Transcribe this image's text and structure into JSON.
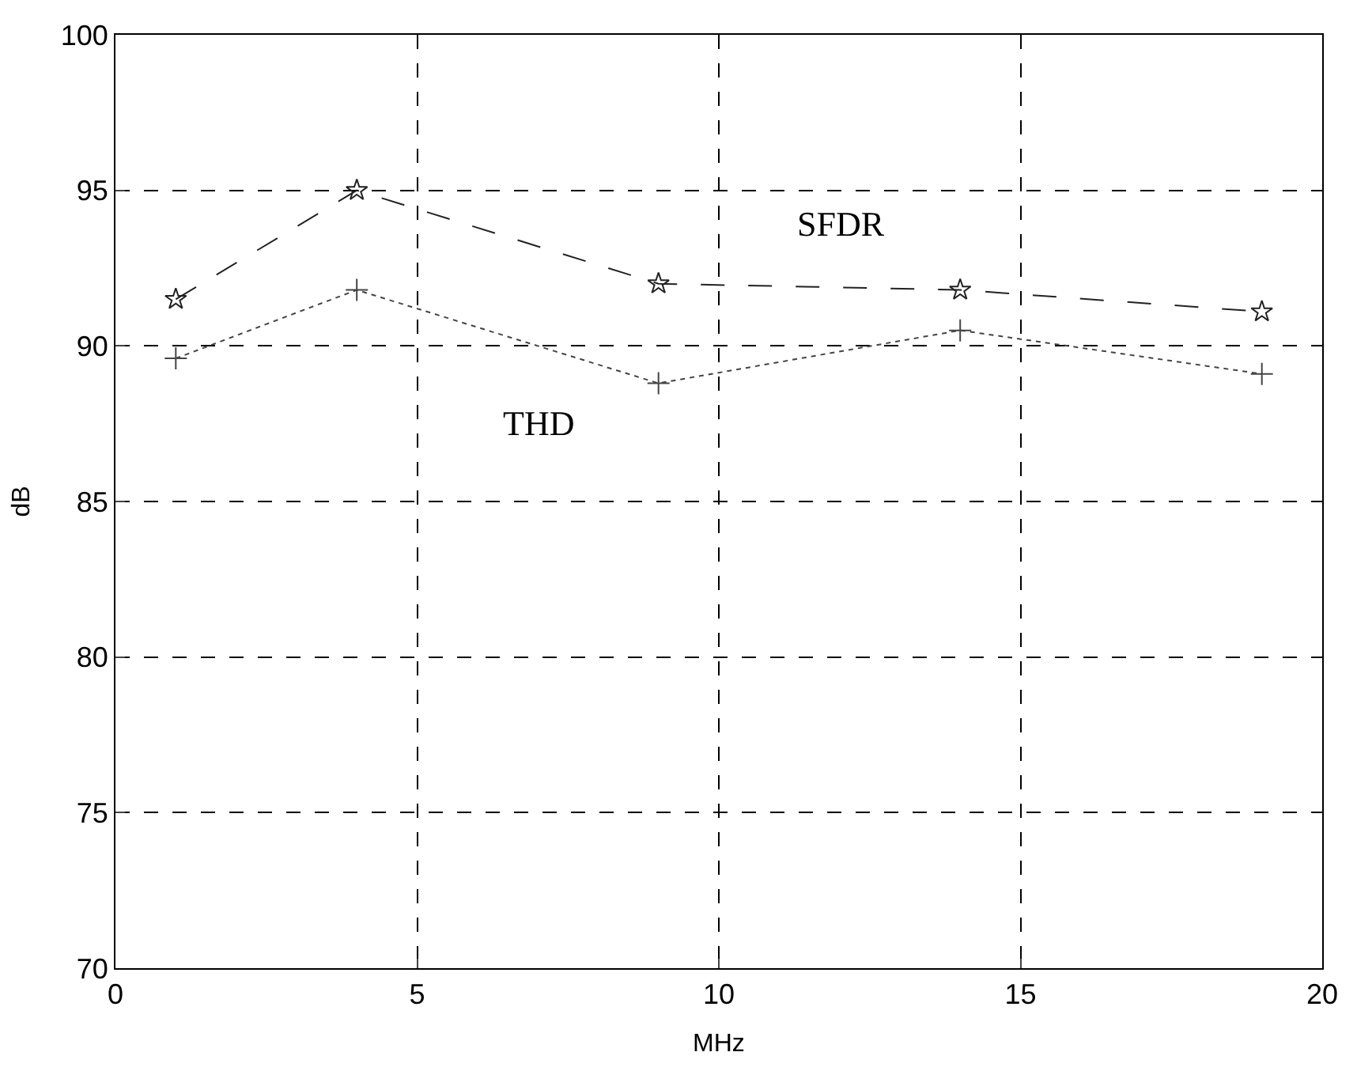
{
  "chart_data": {
    "type": "line",
    "xlabel": "MHz",
    "ylabel": "dB",
    "x": [
      1,
      4,
      9,
      14,
      19
    ],
    "series": [
      {
        "name": "SFDR",
        "color": "#222222",
        "values": [
          91.5,
          95,
          92,
          91.8,
          91.1
        ],
        "marker": "star",
        "line_style": "dashed"
      },
      {
        "name": "THD",
        "color": "#444444",
        "values": [
          89.6,
          91.8,
          88.8,
          90.5,
          89.1
        ],
        "marker": "cross",
        "line_style": "dotted"
      }
    ],
    "xlim": [
      0,
      20
    ],
    "xticks": [
      0,
      5,
      10,
      15,
      20
    ],
    "ylim": [
      70,
      100
    ],
    "yticks": [
      70,
      75,
      80,
      85,
      90,
      95,
      100
    ],
    "grid": true,
    "legend": false
  }
}
